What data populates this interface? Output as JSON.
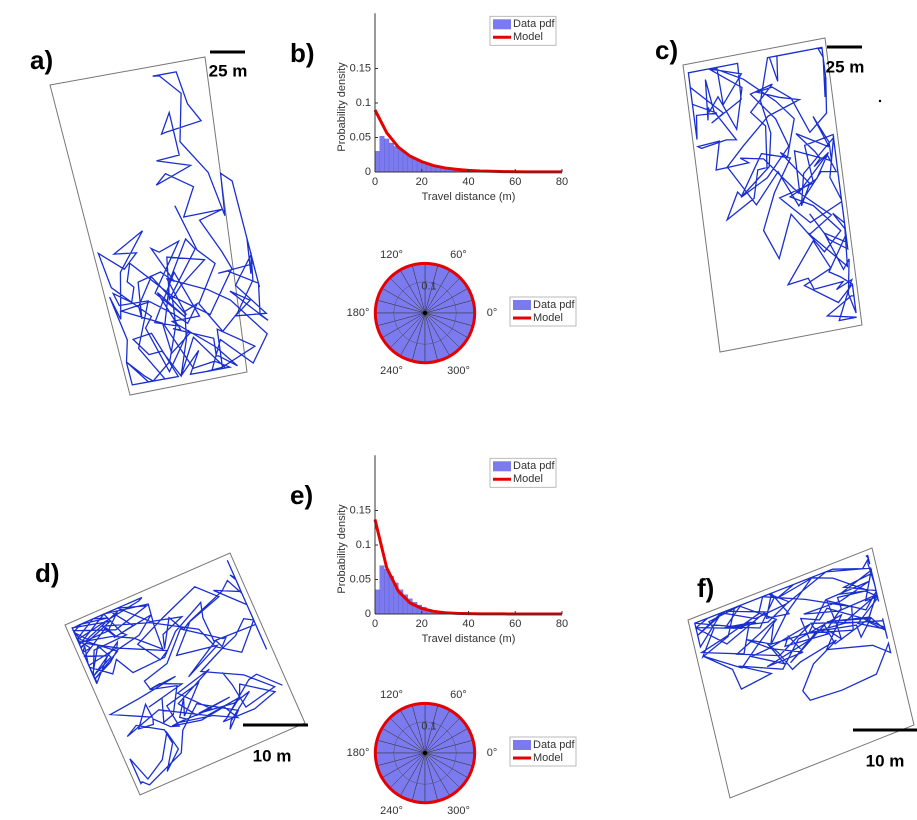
{
  "panels": [
    "a)",
    "b)",
    "c)",
    "d)",
    "e)",
    "f)"
  ],
  "scale_bars": [
    "25 m",
    "25 m",
    "10 m",
    "10 m"
  ],
  "chart_data": [
    {
      "type": "histogram",
      "xlabel": "Travel distance (m)",
      "ylabel": "Probability density",
      "bins": [
        0,
        2,
        4,
        6,
        8,
        10,
        12,
        14,
        16,
        18,
        20,
        22,
        24,
        26,
        28,
        30,
        32,
        34,
        36,
        38,
        40
      ],
      "series": [
        {
          "name": "Data pdf",
          "color": "#7b7bef",
          "values": [
            0.03,
            0.052,
            0.048,
            0.042,
            0.037,
            0.032,
            0.028,
            0.024,
            0.02,
            0.017,
            0.014,
            0.012,
            0.01,
            0.008,
            0.007,
            0.005,
            0.004,
            0.003,
            0.002,
            0.002
          ]
        },
        {
          "name": "Model",
          "color": "#e60000",
          "x": [
            0,
            5,
            10,
            15,
            20,
            25,
            30,
            35,
            40,
            45,
            50,
            55,
            60,
            65,
            70,
            75,
            80
          ],
          "values": [
            0.09,
            0.057,
            0.036,
            0.023,
            0.015,
            0.0093,
            0.0059,
            0.0038,
            0.0024,
            0.0015,
            0.001,
            0.0006,
            0.0004,
            0.0002,
            0.0002,
            0.0001,
            0.0001
          ]
        }
      ],
      "xlim": [
        0,
        80
      ],
      "xticks": [
        0,
        20,
        40,
        60,
        80
      ],
      "ylim": [
        0,
        0.23
      ],
      "yticks": [
        0,
        0.05,
        0.1,
        0.15
      ]
    },
    {
      "type": "polar",
      "series": [
        {
          "name": "Data pdf",
          "color": "#7b7bef",
          "values": [
            0.159,
            0.159,
            0.159,
            0.159,
            0.159,
            0.159,
            0.159,
            0.159,
            0.159,
            0.159,
            0.159,
            0.159,
            0.159,
            0.159,
            0.159,
            0.159,
            0.159,
            0.159,
            0.159,
            0.159,
            0.159,
            0.159,
            0.159,
            0.159
          ]
        },
        {
          "name": "Model",
          "color": "#e60000",
          "values": [
            0.159
          ]
        }
      ],
      "rlim": [
        0,
        0.16
      ],
      "rticks": [
        0.1
      ],
      "thetaticks": [
        {
          "value": 0,
          "label": "0°"
        },
        {
          "value": 60,
          "label": "60°"
        },
        {
          "value": 120,
          "label": "120°"
        },
        {
          "value": 180,
          "label": "180°"
        },
        {
          "value": 240,
          "label": "240°"
        },
        {
          "value": 300,
          "label": "300°"
        }
      ]
    },
    {
      "type": "histogram",
      "xlabel": "Travel distance (m)",
      "ylabel": "Probability density",
      "bins": [
        0,
        2,
        4,
        6,
        8,
        10,
        12,
        14,
        16,
        18,
        20,
        22,
        24,
        26,
        28,
        30
      ],
      "series": [
        {
          "name": "Data pdf",
          "color": "#7b7bef",
          "values": [
            0.035,
            0.07,
            0.065,
            0.055,
            0.045,
            0.035,
            0.028,
            0.022,
            0.017,
            0.013,
            0.01,
            0.007,
            0.005,
            0.004,
            0.003
          ]
        },
        {
          "name": "Model",
          "color": "#e60000",
          "x": [
            0,
            5,
            10,
            15,
            20,
            25,
            30,
            35,
            40,
            45,
            50,
            55,
            60,
            65,
            70,
            75,
            80
          ],
          "values": [
            0.137,
            0.067,
            0.033,
            0.016,
            0.008,
            0.0039,
            0.0019,
            0.0009,
            0.0005,
            0.0002,
            0.0001,
            0.0001,
            0,
            0,
            0,
            0,
            0
          ]
        }
      ],
      "xlim": [
        0,
        80
      ],
      "xticks": [
        0,
        20,
        40,
        60,
        80
      ],
      "ylim": [
        0,
        0.23
      ],
      "yticks": [
        0,
        0.05,
        0.1,
        0.15
      ]
    },
    {
      "type": "polar",
      "series": [
        {
          "name": "Data pdf",
          "color": "#7b7bef",
          "values": [
            0.159,
            0.159,
            0.159,
            0.159,
            0.159,
            0.159,
            0.159,
            0.159,
            0.159,
            0.159,
            0.159,
            0.159,
            0.159,
            0.159,
            0.159,
            0.159,
            0.159,
            0.159,
            0.159,
            0.159,
            0.159,
            0.159,
            0.159,
            0.159
          ]
        },
        {
          "name": "Model",
          "color": "#e60000",
          "values": [
            0.159
          ]
        }
      ],
      "rlim": [
        0,
        0.16
      ],
      "rticks": [
        0.1
      ],
      "thetaticks": [
        {
          "value": 0,
          "label": "0°"
        },
        {
          "value": 60,
          "label": "60°"
        },
        {
          "value": 120,
          "label": "120°"
        },
        {
          "value": 180,
          "label": "180°"
        },
        {
          "value": 240,
          "label": "240°"
        },
        {
          "value": 300,
          "label": "300°"
        }
      ]
    }
  ]
}
